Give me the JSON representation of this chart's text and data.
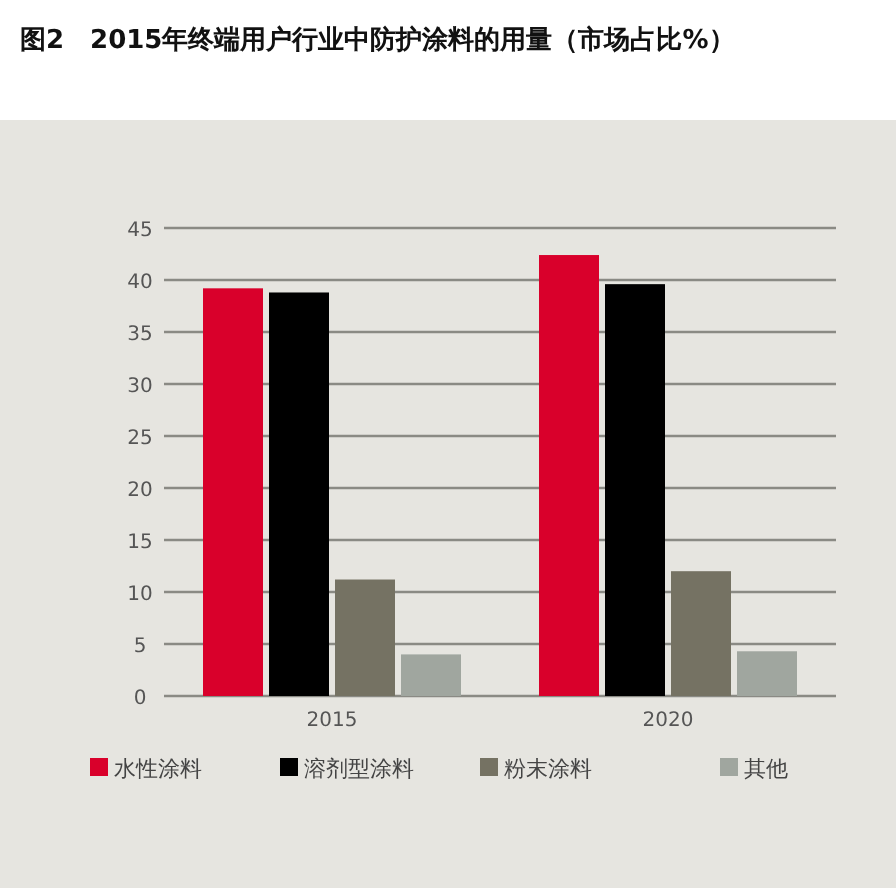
{
  "chart_data": {
    "type": "bar",
    "title": "图2　2015年终端用户行业中防护涂料的用量（市场占比%）",
    "categories": [
      "2015",
      "2020"
    ],
    "series": [
      {
        "name": "水性涂料",
        "color": "#d9002b",
        "values": [
          39.2,
          42.4
        ]
      },
      {
        "name": "溶剂型涂料",
        "color": "#000000",
        "values": [
          38.8,
          39.6
        ]
      },
      {
        "name": "粉末涂料",
        "color": "#757263",
        "values": [
          11.2,
          12.0
        ]
      },
      {
        "name": "其他",
        "color": "#a0a69f",
        "values": [
          4.0,
          4.3
        ]
      }
    ],
    "ylim": [
      0,
      45
    ],
    "yticks": [
      0,
      5,
      10,
      15,
      20,
      25,
      30,
      35,
      40,
      45
    ],
    "grid": "y",
    "legend": "bottom"
  }
}
